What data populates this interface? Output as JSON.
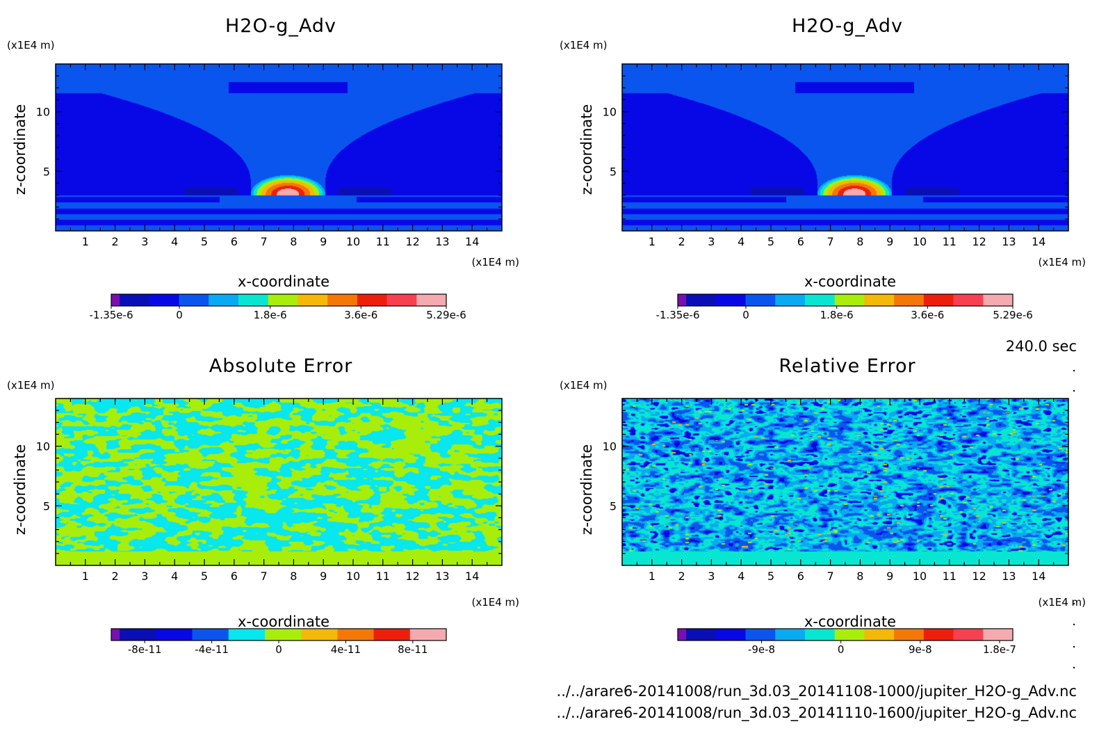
{
  "figure": {
    "time_label": "240.0 sec",
    "files": [
      "../../arare6-20141008/run_3d.03_20141108-1000/jupiter_H2O-g_Adv.nc",
      "../../arare6-20141008/run_3d.03_20141110-1600/jupiter_H2O-g_Adv.nc"
    ]
  },
  "chart_data": [
    {
      "type": "heatmap",
      "title": "H2O-g_Adv",
      "xlabel": "x-coordinate",
      "ylabel": "z-coordinate",
      "x_unit": "(x1E4 m)",
      "z_unit": "(x1E4 m)",
      "x_ticks": [
        "1",
        "2",
        "3",
        "4",
        "5",
        "6",
        "7",
        "8",
        "9",
        "10",
        "11",
        "12",
        "13",
        "14"
      ],
      "z_ticks": [
        "5",
        "10"
      ],
      "xlim": [
        0,
        15
      ],
      "zlim": [
        0,
        14
      ],
      "pattern": "plume",
      "colorbar": {
        "colors": [
          "#7a0fb0",
          "#0a0fb5",
          "#0808e6",
          "#0a55ee",
          "#08aaf2",
          "#08e6d2",
          "#a8ee0a",
          "#f4b908",
          "#f47808",
          "#ee1f0a",
          "#f74050",
          "#f5aab0"
        ],
        "ticks": [
          {
            "label": "-1.35e-6",
            "value": -1.35e-06
          },
          {
            "label": "0",
            "value": 0
          },
          {
            "label": "1.8e-6",
            "value": 1.8e-06
          },
          {
            "label": "3.6e-6",
            "value": 3.6e-06
          },
          {
            "label": "5.29e-6",
            "value": 5.29e-06
          }
        ],
        "range": [
          -1.35e-06,
          5.29e-06
        ]
      }
    },
    {
      "type": "heatmap",
      "title": "H2O-g_Adv",
      "xlabel": "x-coordinate",
      "ylabel": "z-coordinate",
      "x_unit": "(x1E4 m)",
      "z_unit": "(x1E4 m)",
      "x_ticks": [
        "1",
        "2",
        "3",
        "4",
        "5",
        "6",
        "7",
        "8",
        "9",
        "10",
        "11",
        "12",
        "13",
        "14"
      ],
      "z_ticks": [
        "5",
        "10"
      ],
      "xlim": [
        0,
        15
      ],
      "zlim": [
        0,
        14
      ],
      "pattern": "plume",
      "colorbar": {
        "colors": [
          "#7a0fb0",
          "#0a0fb5",
          "#0808e6",
          "#0a55ee",
          "#08aaf2",
          "#08e6d2",
          "#a8ee0a",
          "#f4b908",
          "#f47808",
          "#ee1f0a",
          "#f74050",
          "#f5aab0"
        ],
        "ticks": [
          {
            "label": "-1.35e-6",
            "value": -1.35e-06
          },
          {
            "label": "0",
            "value": 0
          },
          {
            "label": "1.8e-6",
            "value": 1.8e-06
          },
          {
            "label": "3.6e-6",
            "value": 3.6e-06
          },
          {
            "label": "5.29e-6",
            "value": 5.29e-06
          }
        ],
        "range": [
          -1.35e-06,
          5.29e-06
        ]
      }
    },
    {
      "type": "heatmap",
      "title": "Absolute Error",
      "xlabel": "x-coordinate",
      "ylabel": "z-coordinate",
      "x_unit": "(x1E4 m)",
      "z_unit": "(x1E4 m)",
      "x_ticks": [
        "1",
        "2",
        "3",
        "4",
        "5",
        "6",
        "7",
        "8",
        "9",
        "10",
        "11",
        "12",
        "13",
        "14"
      ],
      "z_ticks": [
        "5",
        "10"
      ],
      "xlim": [
        0,
        15
      ],
      "zlim": [
        0,
        14
      ],
      "pattern": "noise-abs",
      "colorbar": {
        "colors": [
          "#7a0fb0",
          "#0a0fb5",
          "#0808e6",
          "#0a55ee",
          "#08e6ee",
          "#a8ee0a",
          "#f4b908",
          "#f47808",
          "#ee1f0a",
          "#f5aab0"
        ],
        "ticks": [
          {
            "label": "-8e-11",
            "value": -8e-11
          },
          {
            "label": "-4e-11",
            "value": -4e-11
          },
          {
            "label": "0",
            "value": 0
          },
          {
            "label": "4e-11",
            "value": 4e-11
          },
          {
            "label": "8e-11",
            "value": 8e-11
          }
        ],
        "range": [
          -1e-10,
          1e-10
        ]
      }
    },
    {
      "type": "heatmap",
      "title": "Relative Error",
      "xlabel": "x-coordinate",
      "ylabel": "z-coordinate",
      "x_unit": "(x1E4 m)",
      "z_unit": "(x1E4 m)",
      "x_ticks": [
        "1",
        "2",
        "3",
        "4",
        "5",
        "6",
        "7",
        "8",
        "9",
        "10",
        "11",
        "12",
        "13",
        "14"
      ],
      "z_ticks": [
        "5",
        "10"
      ],
      "xlim": [
        0,
        15
      ],
      "zlim": [
        0,
        14
      ],
      "pattern": "noise-rel",
      "colorbar": {
        "colors": [
          "#7a0fb0",
          "#0a0fb5",
          "#0808e6",
          "#0a55ee",
          "#08aaf2",
          "#08e6d2",
          "#a8ee0a",
          "#f4b908",
          "#f47808",
          "#ee1f0a",
          "#f74050",
          "#f5aab0"
        ],
        "ticks": [
          {
            "label": "-9e-8",
            "value": -9e-08
          },
          {
            "label": "0",
            "value": 0
          },
          {
            "label": "9e-8",
            "value": 9e-08
          },
          {
            "label": "1.8e-7",
            "value": 1.8e-07
          }
        ],
        "range": [
          -1.85e-07,
          1.95e-07
        ]
      }
    }
  ]
}
